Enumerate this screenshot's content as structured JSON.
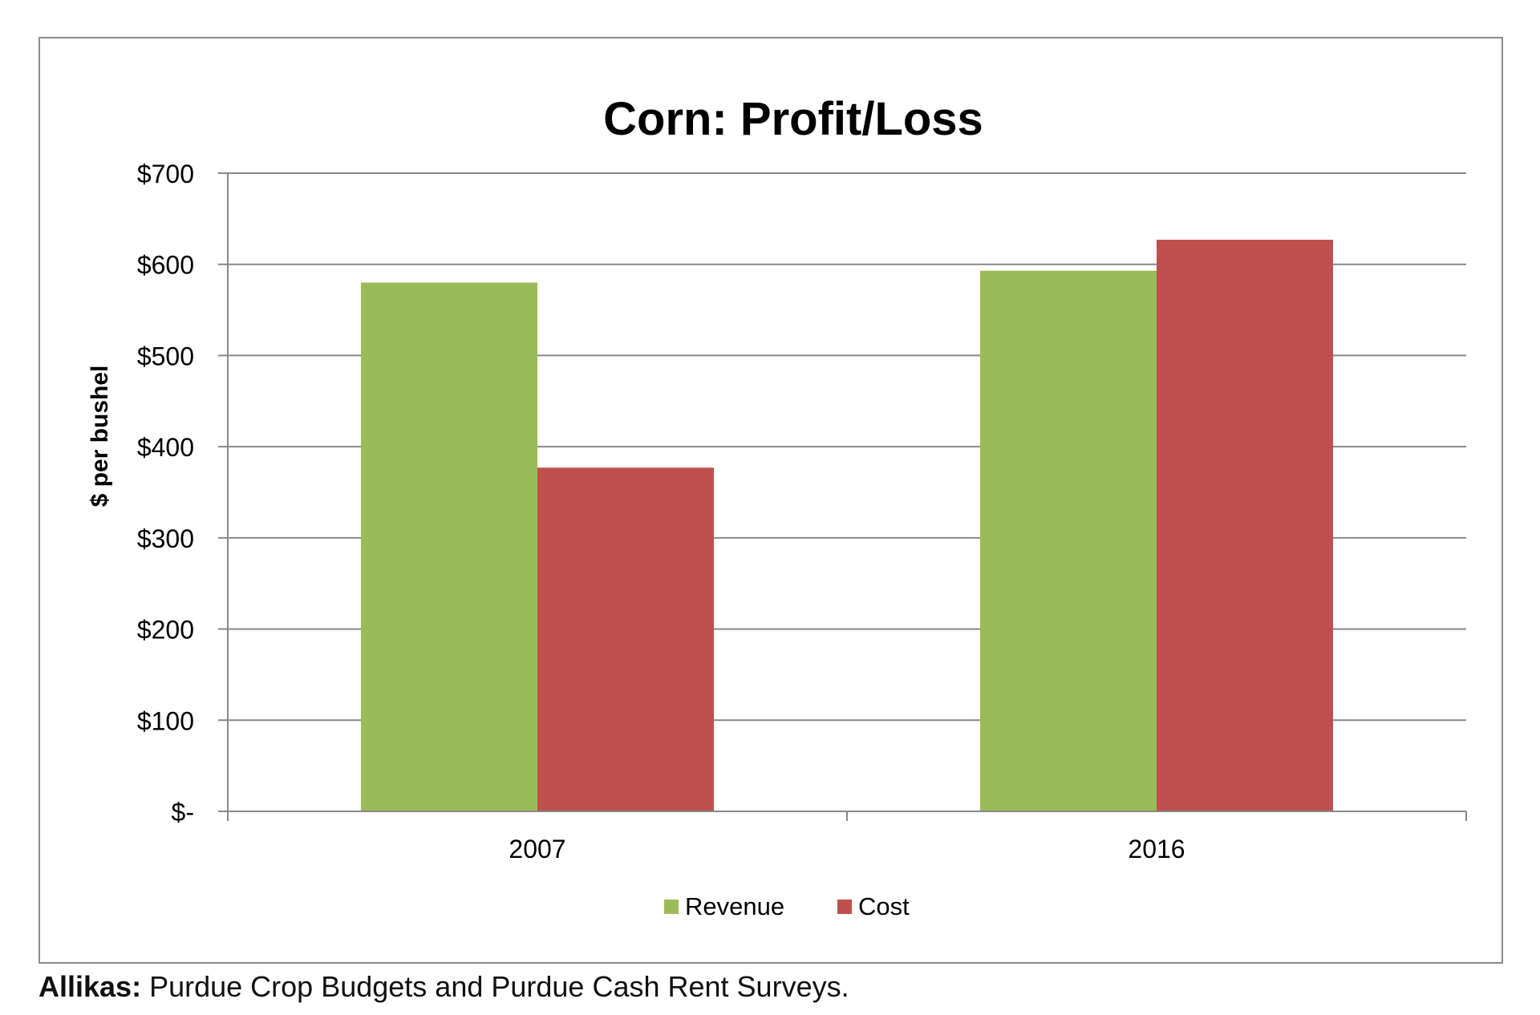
{
  "chart_data": {
    "type": "bar",
    "title": "Corn: Profit/Loss",
    "xlabel": "",
    "ylabel": "$ per bushel",
    "categories": [
      "2007",
      "2016"
    ],
    "series": [
      {
        "name": "Revenue",
        "color": "#9bbb59",
        "values": [
          580,
          593
        ]
      },
      {
        "name": "Cost",
        "color": "#c0504d",
        "values": [
          377,
          627
        ]
      }
    ],
    "ylim": [
      0,
      700
    ],
    "yticks": [
      0,
      100,
      200,
      300,
      400,
      500,
      600,
      700
    ],
    "ytick_labels": [
      "$-",
      "$100",
      "$200",
      "$300",
      "$400",
      "$500",
      "$600",
      "$700"
    ],
    "grid": true,
    "legend": "bottom"
  },
  "source": {
    "label": "Allikas",
    "separator": ":",
    "text": " Purdue Crop Budgets and Purdue Cash Rent Surveys."
  }
}
